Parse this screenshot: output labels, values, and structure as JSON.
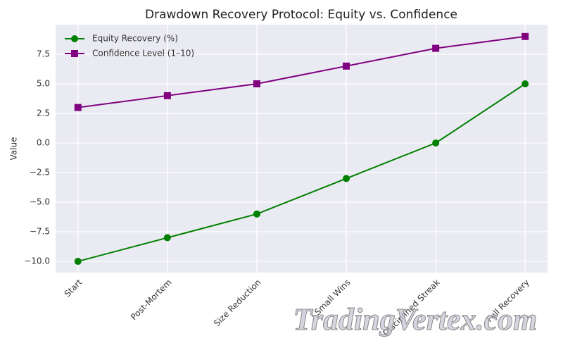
{
  "chart_data": {
    "type": "line",
    "title": "Drawdown Recovery Protocol: Equity vs. Confidence",
    "y_label": "Value",
    "watermark": "TradingVertex.com",
    "categories": [
      "Start",
      "Post-Mortem",
      "Size Reduction",
      "Small Wins",
      "Disciplined Streak",
      "Full Recovery"
    ],
    "series": [
      {
        "name": "Equity Recovery (%)",
        "color": "#008000",
        "marker": "circle",
        "values": [
          -10,
          -8,
          -6,
          -3,
          0,
          5
        ]
      },
      {
        "name": "Confidence Level (1–10)",
        "color": "#800080",
        "marker": "square",
        "values": [
          3,
          4,
          5,
          6.5,
          8,
          9
        ]
      }
    ],
    "ylim": [
      -10.95,
      10.0
    ],
    "yticks": [
      {
        "value": -10,
        "label": "−10.0"
      },
      {
        "value": -7.5,
        "label": "−7.5"
      },
      {
        "value": -5,
        "label": "−5.0"
      },
      {
        "value": -2.5,
        "label": "−2.5"
      },
      {
        "value": 0,
        "label": "0.0"
      },
      2.5,
      {
        "value": 5,
        "label": "5.0"
      },
      7.5
    ],
    "grid": true,
    "legend": "upper-left"
  }
}
